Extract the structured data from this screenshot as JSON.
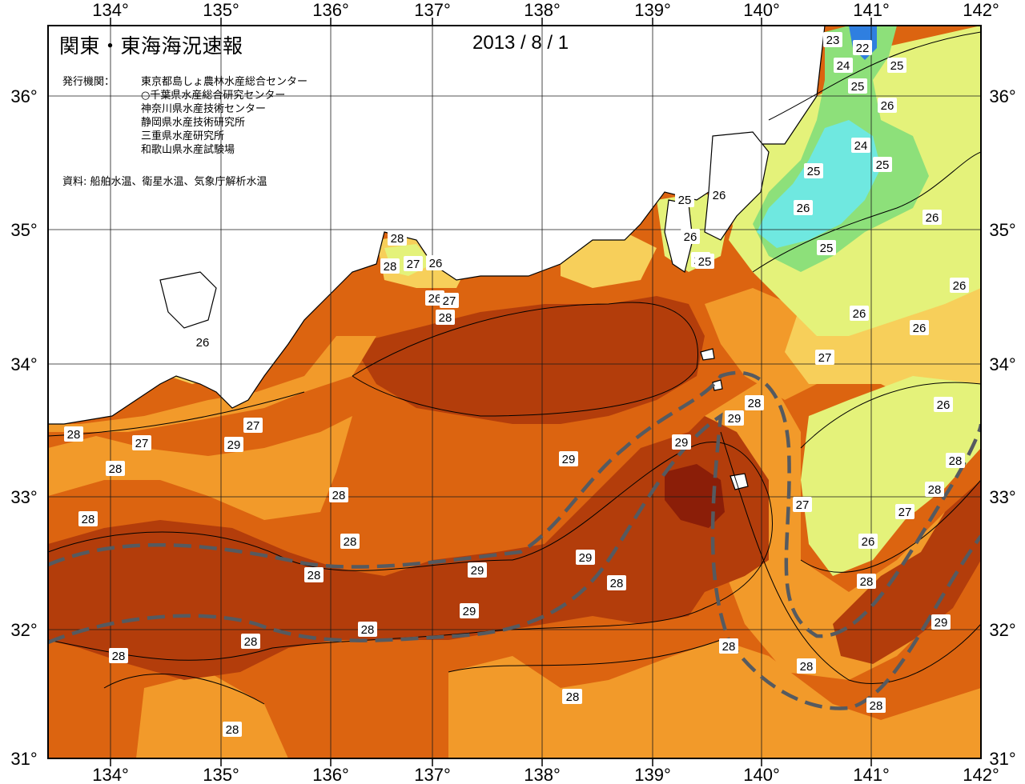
{
  "header": {
    "title": "関東・東海海況速報",
    "date": "2013 / 8 / 1"
  },
  "issuers": {
    "label": "発行機関：",
    "list": [
      "東京都島しょ農林水産総合センター",
      "○千葉県水産総合研究センター",
      "神奈川県水産技術センター",
      "静岡県水産技術研究所",
      "三重県水産研究所",
      "和歌山県水産試験場"
    ]
  },
  "source": "資料: 船舶水温、衛星水温、気象庁解析水温",
  "axes": {
    "lon_labels": [
      "134°",
      "135°",
      "136°",
      "137°",
      "138°",
      "139°",
      "140°",
      "141°",
      "142°"
    ],
    "lat_labels": [
      "36°",
      "35°",
      "34°",
      "33°",
      "32°",
      "31°"
    ]
  },
  "colors": {
    "t29plus": "#8b1e08",
    "t29": "#b33d0b",
    "t28": "#dc6410",
    "t27": "#f29a2a",
    "t26": "#f7cf5a",
    "t25": "#e4f27a",
    "t24": "#8de07a",
    "t23": "#6fe8e0",
    "t22": "#2f7fe0",
    "land": "#ffffff",
    "kuroshio_axis": "#555a60"
  },
  "isotherm_labels": [
    "23",
    "22",
    "24",
    "25",
    "25",
    "26",
    "24",
    "25",
    "25",
    "26",
    "26",
    "25",
    "26",
    "26",
    "25",
    "24",
    "25",
    "26",
    "26",
    "27",
    "26",
    "26",
    "28",
    "28",
    "27",
    "26",
    "26",
    "27",
    "28",
    "26",
    "27",
    "26",
    "28",
    "28",
    "29",
    "29",
    "28",
    "27",
    "28",
    "28",
    "27",
    "28",
    "29",
    "28",
    "28",
    "27",
    "28",
    "29",
    "29",
    "29",
    "28",
    "28",
    "29",
    "29",
    "29",
    "28",
    "28",
    "29",
    "28",
    "28",
    "28",
    "28",
    "28",
    "28",
    "28",
    "28"
  ],
  "layers": {
    "legend_kuroshio": "黒潮流軸"
  }
}
